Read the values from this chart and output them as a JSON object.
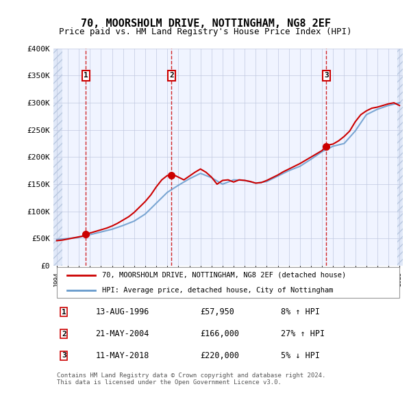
{
  "title": "70, MOORSHOLM DRIVE, NOTTINGHAM, NG8 2EF",
  "subtitle": "Price paid vs. HM Land Registry's House Price Index (HPI)",
  "background_color": "#f0f4ff",
  "hatch_color": "#d0d8f0",
  "grid_color": "#c0c8e0",
  "sale_dates": [
    "1996-08-13",
    "2004-05-21",
    "2018-05-11"
  ],
  "sale_prices": [
    57950,
    166000,
    220000
  ],
  "sale_labels": [
    "1",
    "2",
    "3"
  ],
  "table_data": [
    [
      "1",
      "13-AUG-1996",
      "£57,950",
      "8% ↑ HPI"
    ],
    [
      "2",
      "21-MAY-2004",
      "£166,000",
      "27% ↑ HPI"
    ],
    [
      "3",
      "11-MAY-2018",
      "£220,000",
      "5% ↓ HPI"
    ]
  ],
  "legend_line1": "70, MOORSHOLM DRIVE, NOTTINGHAM, NG8 2EF (detached house)",
  "legend_line2": "HPI: Average price, detached house, City of Nottingham",
  "footer": "Contains HM Land Registry data © Crown copyright and database right 2024.\nThis data is licensed under the Open Government Licence v3.0.",
  "sale_line_color": "#cc0000",
  "hpi_line_color": "#6699cc",
  "vline_color": "#cc0000",
  "ylabel_color": "#333333",
  "ylim": [
    0,
    400000
  ],
  "yticks": [
    0,
    50000,
    100000,
    150000,
    200000,
    250000,
    300000,
    350000,
    400000
  ],
  "ytick_labels": [
    "£0",
    "£50K",
    "£100K",
    "£150K",
    "£200K",
    "£250K",
    "£300K",
    "£350K",
    "£400K"
  ],
  "x_start_year": 1994,
  "x_end_year": 2025,
  "hpi_years": [
    1994,
    1995,
    1996,
    1997,
    1998,
    1999,
    2000,
    2001,
    2002,
    2003,
    2004,
    2005,
    2006,
    2007,
    2008,
    2009,
    2010,
    2011,
    2012,
    2013,
    2014,
    2015,
    2016,
    2017,
    2018,
    2019,
    2020,
    2021,
    2022,
    2023,
    2024,
    2025
  ],
  "hpi_values": [
    48000,
    50000,
    52000,
    57000,
    62000,
    67000,
    74000,
    82000,
    95000,
    115000,
    135000,
    148000,
    160000,
    170000,
    162000,
    150000,
    158000,
    157000,
    152000,
    155000,
    165000,
    175000,
    183000,
    196000,
    210000,
    220000,
    225000,
    248000,
    278000,
    288000,
    295000,
    300000
  ],
  "price_line_years": [
    1994,
    1994.5,
    1995,
    1995.5,
    1996,
    1996.5,
    1996.63,
    1997,
    1997.5,
    1998,
    1998.5,
    1999,
    1999.5,
    2000,
    2000.5,
    2001,
    2001.5,
    2002,
    2002.5,
    2003,
    2003.5,
    2004,
    2004.38,
    2004.5,
    2005,
    2005.5,
    2006,
    2006.5,
    2007,
    2007.5,
    2008,
    2008.5,
    2009,
    2009.5,
    2010,
    2010.5,
    2011,
    2011.5,
    2012,
    2012.5,
    2013,
    2013.5,
    2014,
    2014.5,
    2015,
    2015.5,
    2016,
    2016.5,
    2017,
    2017.5,
    2018,
    2018.37,
    2018.5,
    2019,
    2019.5,
    2020,
    2020.5,
    2021,
    2021.5,
    2022,
    2022.5,
    2023,
    2023.5,
    2024,
    2024.5,
    2025
  ],
  "price_line_values": [
    46000,
    47000,
    49000,
    51000,
    53000,
    55000,
    57950,
    60000,
    63000,
    66000,
    69000,
    73000,
    78000,
    84000,
    90000,
    98000,
    108000,
    118000,
    130000,
    145000,
    158000,
    166000,
    166000,
    168000,
    163000,
    158000,
    165000,
    172000,
    178000,
    172000,
    163000,
    150000,
    157000,
    158000,
    154000,
    158000,
    157000,
    155000,
    152000,
    153000,
    157000,
    162000,
    167000,
    173000,
    178000,
    183000,
    188000,
    194000,
    200000,
    206000,
    212000,
    220000,
    222000,
    224000,
    230000,
    238000,
    248000,
    265000,
    278000,
    285000,
    290000,
    292000,
    295000,
    298000,
    300000,
    295000
  ]
}
